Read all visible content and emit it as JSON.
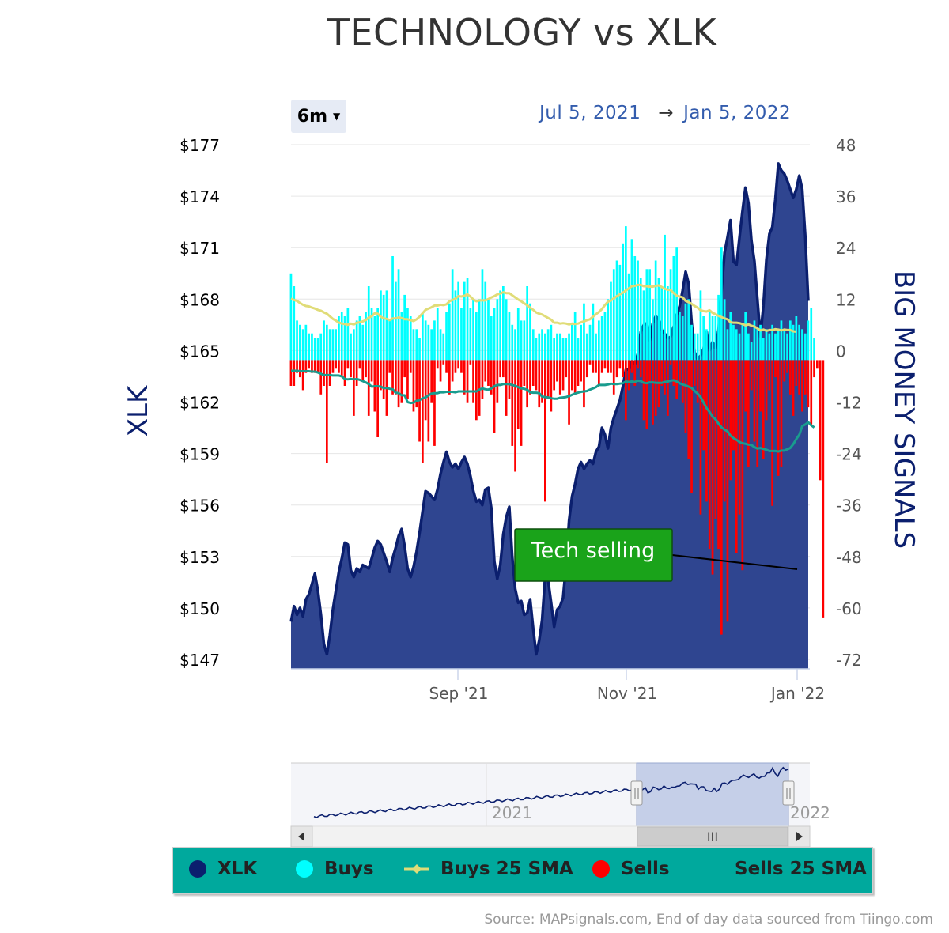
{
  "title": "TECHNOLOGY vs XLK",
  "range_selector": {
    "label": "6m"
  },
  "date_range": {
    "from": "Jul 5, 2021",
    "arrow": "→",
    "to": "Jan 5, 2022"
  },
  "annotation": {
    "text": "Tech selling"
  },
  "source": "Source: MAPsignals.com, End of day data sourced from Tiingo.com",
  "colors": {
    "xlk_line": "#0b1f6e",
    "xlk_area": "#2f4590",
    "buys": "#00ffff",
    "buys_sma": "#e0dc78",
    "sells": "#ff0000",
    "sells_sma": "#199c8e",
    "legend_bg": "#00a99d",
    "annotation_bg": "#1aa31a"
  },
  "legend": [
    {
      "label": "XLK",
      "color": "#0b1f6e",
      "symbol": "dot"
    },
    {
      "label": "Buys",
      "color": "#00ffff",
      "symbol": "dot"
    },
    {
      "label": "Buys 25 SMA",
      "color": "#e0dc78",
      "symbol": "line-diamond"
    },
    {
      "label": "Sells",
      "color": "#ff0000",
      "symbol": "dot"
    },
    {
      "label": "Sells 25 SMA",
      "color": "#199c8e",
      "symbol": "none"
    }
  ],
  "navigator": {
    "year_labels": [
      "2021",
      "2022"
    ],
    "scroll_grip": "III"
  },
  "chart_data": {
    "type": "line",
    "title": "TECHNOLOGY vs XLK",
    "x_tick_labels": [
      "Sep '21",
      "Nov '21",
      "Jan '22"
    ],
    "y_left": {
      "label": "XLK",
      "ticks": [
        "$177",
        "$174",
        "$171",
        "$168",
        "$165",
        "$162",
        "$159",
        "$156",
        "$153",
        "$150",
        "$147"
      ],
      "range": [
        146.5,
        177
      ]
    },
    "y_right": {
      "label": "BIG MONEY SIGNALS",
      "ticks": [
        "48",
        "36",
        "24",
        "12",
        "0",
        "-12",
        "-24",
        "-36",
        "-48",
        "-60",
        "-72"
      ],
      "range": [
        -74,
        48
      ]
    },
    "series": [
      {
        "name": "XLK",
        "axis": "left",
        "type": "area",
        "values": [
          149.2,
          150.1,
          149.6,
          150.0,
          149.5,
          150.5,
          150.8,
          151.4,
          152.0,
          151.0,
          149.6,
          147.9,
          147.3,
          148.4,
          149.9,
          151.0,
          152.1,
          152.9,
          153.8,
          153.7,
          152.2,
          151.8,
          152.3,
          152.1,
          152.5,
          152.4,
          152.3,
          152.9,
          153.5,
          153.9,
          153.7,
          153.2,
          152.7,
          152.1,
          152.9,
          153.5,
          154.2,
          154.6,
          153.6,
          152.3,
          151.8,
          152.4,
          153.3,
          154.4,
          155.6,
          156.8,
          156.7,
          156.5,
          156.3,
          156.9,
          157.8,
          158.5,
          159.1,
          158.5,
          158.2,
          158.4,
          158.1,
          158.5,
          158.8,
          158.4,
          157.7,
          156.8,
          156.2,
          156.3,
          156.0,
          156.9,
          157.0,
          155.8,
          152.7,
          151.7,
          152.5,
          154.3,
          155.3,
          155.9,
          153.0,
          151.1,
          150.3,
          150.4,
          149.6,
          149.7,
          150.5,
          148.8,
          147.3,
          148.1,
          149.3,
          151.8,
          151.6,
          150.3,
          148.9,
          149.9,
          150.1,
          150.6,
          152.5,
          155.1,
          156.5,
          157.2,
          158.1,
          158.5,
          158.1,
          158.4,
          158.6,
          158.4,
          159.1,
          159.4,
          160.5,
          160.1,
          159.3,
          160.5,
          161.1,
          161.6,
          162.1,
          162.9,
          163.9,
          163.9,
          164.4,
          164.2,
          164.8,
          166.1,
          166.5,
          166.6,
          165.6,
          166.6,
          167.0,
          166.8,
          166.2,
          166.0,
          165.7,
          165.8,
          166.4,
          167.1,
          167.6,
          168.5,
          169.6,
          168.9,
          166.6,
          164.9,
          164.5,
          164.7,
          165.1,
          166.1,
          165.0,
          165.5,
          165.1,
          166.2,
          168.5,
          170.7,
          171.6,
          172.6,
          170.2,
          170.0,
          171.6,
          173.1,
          174.5,
          173.6,
          171.4,
          170.2,
          168.0,
          165.8,
          167.6,
          170.3,
          171.8,
          172.2,
          173.8,
          175.9,
          175.5,
          175.3,
          174.9,
          174.4,
          173.9,
          174.4,
          175.2,
          174.4,
          171.7,
          167.9
        ]
      },
      {
        "name": "Buys",
        "axis": "right",
        "type": "column",
        "values": [
          18,
          15,
          7,
          6,
          5,
          6,
          4,
          4,
          3,
          3,
          4,
          7,
          6,
          5,
          5,
          5,
          8,
          9,
          8,
          10,
          4,
          5,
          7,
          8,
          6,
          9,
          15,
          10,
          8,
          10,
          14,
          13,
          14,
          7,
          22,
          16,
          19,
          9,
          13,
          10,
          8,
          5,
          5,
          3,
          9,
          7,
          6,
          5,
          7,
          10,
          5,
          4,
          9,
          11,
          19,
          14,
          16,
          10,
          16,
          17,
          10,
          12,
          9,
          12,
          19,
          16,
          12,
          8,
          10,
          12,
          14,
          15,
          12,
          9,
          6,
          5,
          10,
          7,
          7,
          15,
          11,
          5,
          3,
          4,
          5,
          4,
          5,
          6,
          3,
          4,
          4,
          3,
          3,
          4,
          6,
          9,
          3,
          6,
          11,
          4,
          6,
          11,
          4,
          7,
          8,
          9,
          12,
          16,
          19,
          21,
          20,
          25,
          29,
          18,
          26,
          22,
          21,
          17,
          14,
          19,
          19,
          12,
          21,
          17,
          15,
          27,
          15,
          19,
          22,
          24,
          9,
          8,
          11,
          12,
          6,
          4,
          4,
          14,
          8,
          5,
          9,
          8,
          8,
          13,
          24,
          12,
          5,
          9,
          6,
          5,
          4,
          6,
          9,
          4,
          2,
          7,
          5,
          6,
          3,
          5,
          4,
          6,
          4,
          5,
          7,
          5,
          4,
          7,
          6,
          8,
          6,
          5,
          4,
          7,
          10,
          3
        ]
      },
      {
        "name": "Sells",
        "axis": "right",
        "type": "column",
        "values": [
          -6,
          -6,
          -3,
          -4,
          -7,
          -3,
          -2,
          -3,
          -3,
          -3,
          -8,
          -6,
          -24,
          -6,
          -3,
          -2,
          -3,
          -4,
          -6,
          -2,
          -4,
          -13,
          -6,
          -2,
          -5,
          -4,
          -13,
          -5,
          -12,
          -18,
          -7,
          -9,
          -13,
          -3,
          -8,
          -8,
          -11,
          -10,
          -4,
          -9,
          -3,
          -12,
          -11,
          -19,
          -24,
          -14,
          -19,
          -10,
          -20,
          -2,
          -5,
          -1,
          -3,
          -8,
          -5,
          -3,
          -2,
          -3,
          -8,
          -10,
          -1,
          -10,
          -14,
          -13,
          -9,
          -5,
          -6,
          -8,
          -17,
          -10,
          -4,
          -4,
          -13,
          -9,
          -20,
          -26,
          -16,
          -20,
          -6,
          -11,
          -8,
          -6,
          -7,
          -11,
          -10,
          -33,
          -9,
          -12,
          -7,
          -5,
          -8,
          -7,
          -4,
          -15,
          -7,
          -8,
          -6,
          -5,
          -11,
          -4,
          -1,
          -3,
          -3,
          -6,
          -3,
          -2,
          -3,
          -3,
          -8,
          -4,
          -2,
          -4,
          -14,
          -7,
          -3,
          -6,
          -2,
          -4,
          -14,
          -16,
          -5,
          -15,
          -13,
          -11,
          -6,
          -8,
          -13,
          -1,
          -6,
          -9,
          -5,
          -10,
          -17,
          -23,
          -31,
          -6,
          -10,
          -36,
          -21,
          -33,
          -44,
          -50,
          -37,
          -44,
          -64,
          -33,
          -61,
          -28,
          -21,
          -45,
          -36,
          -49,
          -12,
          -25,
          -7,
          -19,
          -25,
          -12,
          -23,
          -14,
          -7,
          -34,
          -4,
          -27,
          -25,
          -5,
          -3,
          -8,
          -13,
          -6,
          -8,
          -12,
          -8,
          -11,
          -15,
          -4,
          -2,
          -28,
          -60
        ]
      },
      {
        "name": "Buys 25 SMA",
        "axis": "right",
        "type": "line",
        "values": [
          12.1,
          11.8,
          11.6,
          11.1,
          10.7,
          10.4,
          10.3,
          10.0,
          9.8,
          9.5,
          9.3,
          8.9,
          8.6,
          8.0,
          7.4,
          7.0,
          6.5,
          6.3,
          6.2,
          6.0,
          6.3,
          6.1,
          6.5,
          6.6,
          6.8,
          7.1,
          7.7,
          8.0,
          8.7,
          8.6,
          7.9,
          7.5,
          7.4,
          7.1,
          7.5,
          7.5,
          7.7,
          7.6,
          7.3,
          7.3,
          7.1,
          6.9,
          7.3,
          7.9,
          8.7,
          9.5,
          9.8,
          10.1,
          10.5,
          10.5,
          10.7,
          10.6,
          10.8,
          11.5,
          11.8,
          12.1,
          12.7,
          12.6,
          12.8,
          13.1,
          12.6,
          11.9,
          11.5,
          11.7,
          11.7,
          11.7,
          12.0,
          12.4,
          12.7,
          13.1,
          13.3,
          13.6,
          13.4,
          13.4,
          12.9,
          12.4,
          11.9,
          11.5,
          11.0,
          10.6,
          10.0,
          9.5,
          8.9,
          8.6,
          8.4,
          8.0,
          7.6,
          7.2,
          6.5,
          6.5,
          6.3,
          6.4,
          6.3,
          6.1,
          6.3,
          6.2,
          6.3,
          6.6,
          6.8,
          7.1,
          7.3,
          7.9,
          8.5,
          9.0,
          9.7,
          10.6,
          11.4,
          11.7,
          12.2,
          12.7,
          13.1,
          13.5,
          14.0,
          14.5,
          15.0,
          15.1,
          15.3,
          15.3,
          15.0,
          15.0,
          14.9,
          14.9,
          15.1,
          15.2,
          14.8,
          14.4,
          14.2,
          14.1,
          13.4,
          12.8,
          12.6,
          12.4,
          11.6,
          11.3,
          10.9,
          10.4,
          10.0,
          9.4,
          9.2,
          9.1,
          9.4,
          8.8,
          8.5,
          8.1,
          7.8,
          7.5,
          7.3,
          6.6,
          6.5,
          6.5,
          6.4,
          6.2,
          5.9,
          6.1,
          5.8,
          5.6,
          5.2,
          4.7,
          4.9,
          4.6,
          4.8,
          4.8,
          5.0,
          4.9,
          4.7,
          4.9,
          4.8,
          4.8,
          4.5,
          4.4
        ]
      },
      {
        "name": "Sells 25 SMA",
        "axis": "right",
        "type": "line",
        "values": [
          -2.5,
          -2.5,
          -2.5,
          -2.6,
          -2.6,
          -2.6,
          -2.6,
          -2.7,
          -2.7,
          -2.9,
          -3.2,
          -3.5,
          -3.5,
          -3.5,
          -3.6,
          -3.6,
          -3.6,
          -3.8,
          -4.4,
          -4.5,
          -4.4,
          -4.5,
          -4.4,
          -4.6,
          -4.9,
          -5.2,
          -5.6,
          -6.2,
          -6.1,
          -6.1,
          -6.2,
          -6.5,
          -6.5,
          -6.7,
          -6.8,
          -7.6,
          -7.7,
          -8.2,
          -8.2,
          -9.8,
          -10.0,
          -9.9,
          -9.5,
          -9.3,
          -8.9,
          -8.7,
          -8.2,
          -7.8,
          -7.7,
          -7.7,
          -7.5,
          -7.5,
          -7.4,
          -7.4,
          -7.4,
          -7.5,
          -7.3,
          -7.3,
          -7.3,
          -7.3,
          -7.3,
          -7.3,
          -7.3,
          -6.9,
          -6.6,
          -6.8,
          -6.9,
          -6.6,
          -6.1,
          -5.8,
          -5.8,
          -5.6,
          -5.6,
          -5.6,
          -5.8,
          -6.0,
          -6.3,
          -6.6,
          -6.7,
          -6.9,
          -7.5,
          -7.6,
          -7.6,
          -7.7,
          -8.5,
          -8.6,
          -8.7,
          -8.9,
          -9.0,
          -9.0,
          -8.8,
          -8.7,
          -8.6,
          -8.4,
          -8.1,
          -7.8,
          -7.6,
          -7.4,
          -7.3,
          -7.2,
          -6.9,
          -6.6,
          -6.3,
          -5.8,
          -5.8,
          -5.8,
          -5.7,
          -5.5,
          -5.6,
          -5.6,
          -5.5,
          -5.4,
          -5.0,
          -5.1,
          -5.0,
          -5.1,
          -4.8,
          -4.9,
          -5.3,
          -5.4,
          -5.2,
          -5.2,
          -5.3,
          -5.3,
          -5.3,
          -5.1,
          -5.0,
          -4.8,
          -4.7,
          -5.0,
          -5.4,
          -5.7,
          -5.9,
          -6.2,
          -6.5,
          -7.2,
          -7.8,
          -8.6,
          -9.9,
          -11.2,
          -12.1,
          -13.2,
          -13.8,
          -14.8,
          -15.7,
          -16.2,
          -16.6,
          -17.6,
          -18.2,
          -18.6,
          -19.1,
          -19.4,
          -19.5,
          -19.7,
          -19.8,
          -20.3,
          -20.6,
          -20.5,
          -20.7,
          -20.9,
          -21.2,
          -21.2,
          -21.2,
          -21.3,
          -21.1,
          -21.1,
          -20.8,
          -20.5,
          -19.6,
          -18.4,
          -17.4,
          -15.4,
          -15.0,
          -14.5,
          -15.2,
          -15.7
        ]
      }
    ],
    "legend_position": "bottom",
    "grid": "horizontal"
  }
}
